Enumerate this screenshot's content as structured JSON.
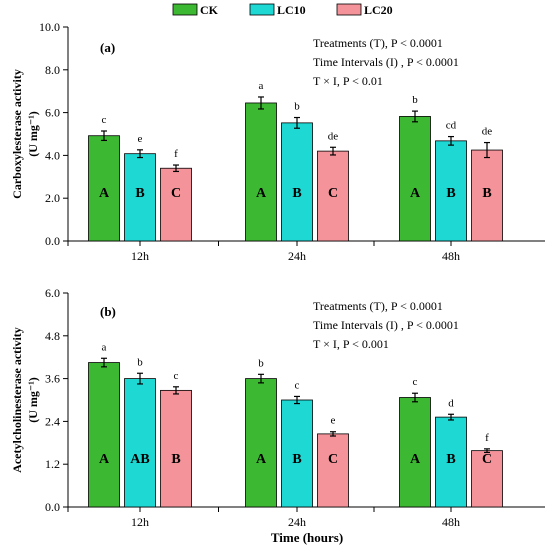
{
  "colors": {
    "CK": "#3cb832",
    "LC10": "#1ed8d4",
    "LC20": "#f4939a"
  },
  "legend": [
    "CK",
    "LC10",
    "LC20"
  ],
  "xlabel": "Time (hours)",
  "chart_data": [
    {
      "type": "bar",
      "panel_label": "(a)",
      "ylabel_line1": "Carboxylesterase activity",
      "ylabel_line2": "(U mg⁻¹)",
      "ylim": [
        0,
        10
      ],
      "yticks": [
        "0.0",
        "2.0",
        "4.0",
        "6.0",
        "8.0",
        "10.0"
      ],
      "categories": [
        "12h",
        "24h",
        "48h"
      ],
      "series": [
        {
          "name": "CK",
          "values": [
            4.92,
            6.45,
            5.82
          ],
          "errors": [
            0.22,
            0.28,
            0.25
          ],
          "letters": [
            "c",
            "a",
            "b"
          ],
          "groups": [
            "A",
            "A",
            "A"
          ]
        },
        {
          "name": "LC10",
          "values": [
            4.08,
            5.52,
            4.68
          ],
          "errors": [
            0.18,
            0.25,
            0.2
          ],
          "letters": [
            "e",
            "b",
            "cd"
          ],
          "groups": [
            "B",
            "B",
            "B"
          ]
        },
        {
          "name": "LC20",
          "values": [
            3.4,
            4.2,
            4.25
          ],
          "errors": [
            0.15,
            0.18,
            0.35
          ],
          "letters": [
            "f",
            "de",
            "de"
          ],
          "groups": [
            "C",
            "C",
            "B"
          ]
        }
      ],
      "stats": [
        "Treatments (T), P < 0.0001",
        "Time Intervals (I) ,  P < 0.0001",
        "T × I,  P < 0.01"
      ]
    },
    {
      "type": "bar",
      "panel_label": "(b)",
      "ylabel_line1": "Acetylcholinesterase activity",
      "ylabel_line2": "(U mg⁻¹)",
      "ylim": [
        0,
        6
      ],
      "yticks": [
        "0.0",
        "1.2",
        "2.4",
        "3.6",
        "4.8",
        "6.0"
      ],
      "categories": [
        "12h",
        "24h",
        "48h"
      ],
      "series": [
        {
          "name": "CK",
          "values": [
            4.05,
            3.6,
            3.07
          ],
          "errors": [
            0.12,
            0.12,
            0.12
          ],
          "letters": [
            "a",
            "b",
            "c"
          ],
          "groups": [
            "A",
            "A",
            "A"
          ]
        },
        {
          "name": "LC10",
          "values": [
            3.6,
            3.0,
            2.52
          ],
          "errors": [
            0.15,
            0.1,
            0.08
          ],
          "letters": [
            "b",
            "c",
            "d"
          ],
          "groups": [
            "AB",
            "B",
            "B"
          ]
        },
        {
          "name": "LC20",
          "values": [
            3.27,
            2.05,
            1.58
          ],
          "errors": [
            0.1,
            0.06,
            0.05
          ],
          "letters": [
            "c",
            "e",
            "f"
          ],
          "groups": [
            "B",
            "C",
            "C"
          ]
        }
      ],
      "stats": [
        "Treatments (T), P < 0.0001",
        "Time Intervals (I) ,  P < 0.0001",
        "T × I,  P < 0.001"
      ]
    }
  ]
}
